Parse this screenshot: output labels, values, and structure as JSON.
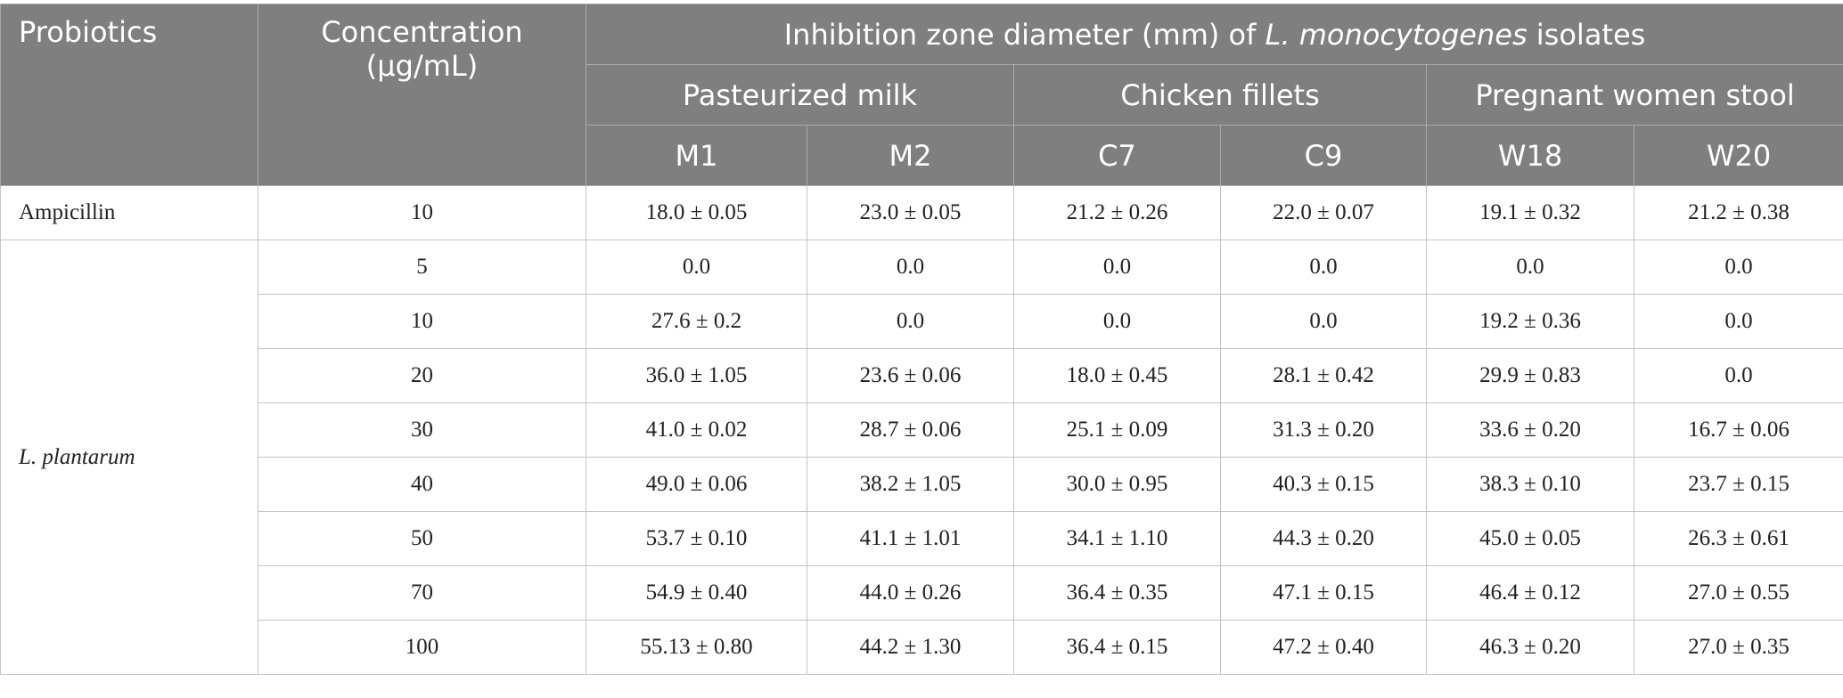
{
  "table": {
    "headers": {
      "probiotics": "Probiotics",
      "concentration": "Concentration (μg/mL)",
      "title_parts": [
        "Inhibition zone diameter (mm) of ",
        "L. monocytogenes",
        " isolates"
      ],
      "groups": [
        "Pasteurized milk",
        "Chicken fillets",
        "Pregnant women stool"
      ],
      "isolates": [
        "M1",
        "M2",
        "C7",
        "C9",
        "W18",
        "W20"
      ]
    },
    "rows": [
      {
        "probiotic": "Ampicillin",
        "entries": [
          [
            "10",
            "18.0 ± 0.05",
            "23.0 ± 0.05",
            "21.2 ± 0.26",
            "22.0 ± 0.07",
            "19.1 ± 0.32",
            "21.2 ± 0.38"
          ]
        ]
      },
      {
        "probiotic": "L. plantarum",
        "entries": [
          [
            "5",
            "0.0",
            "0.0",
            "0.0",
            "0.0",
            "0.0",
            "0.0"
          ],
          [
            "10",
            "27.6 ± 0.2",
            "0.0",
            "0.0",
            "0.0",
            "19.2 ± 0.36",
            "0.0"
          ],
          [
            "20",
            "36.0 ± 1.05",
            "23.6 ± 0.06",
            "18.0 ± 0.45",
            "28.1 ± 0.42",
            "29.9 ± 0.83",
            "0.0"
          ],
          [
            "30",
            "41.0 ± 0.02",
            "28.7 ± 0.06",
            "25.1 ± 0.09",
            "31.3 ± 0.20",
            "33.6 ± 0.20",
            "16.7 ± 0.06"
          ],
          [
            "40",
            "49.0 ± 0.06",
            "38.2 ± 1.05",
            "30.0 ± 0.95",
            "40.3 ± 0.15",
            "38.3 ± 0.10",
            "23.7 ± 0.15"
          ],
          [
            "50",
            "53.7 ± 0.10",
            "41.1 ± 1.01",
            "34.1 ± 1.10",
            "44.3 ± 0.20",
            "45.0 ± 0.05",
            "26.3 ± 0.61"
          ],
          [
            "70",
            "54.9 ± 0.40",
            "44.0 ± 0.26",
            "36.4 ± 0.35",
            "47.1 ± 0.15",
            "46.4 ± 0.12",
            "27.0 ± 0.55"
          ],
          [
            "100",
            "55.13 ± 0.80",
            "44.2 ± 1.30",
            "36.4 ± 0.15",
            "47.2 ± 0.40",
            "46.3 ± 0.20",
            "27.0 ± 0.35"
          ]
        ]
      }
    ]
  }
}
